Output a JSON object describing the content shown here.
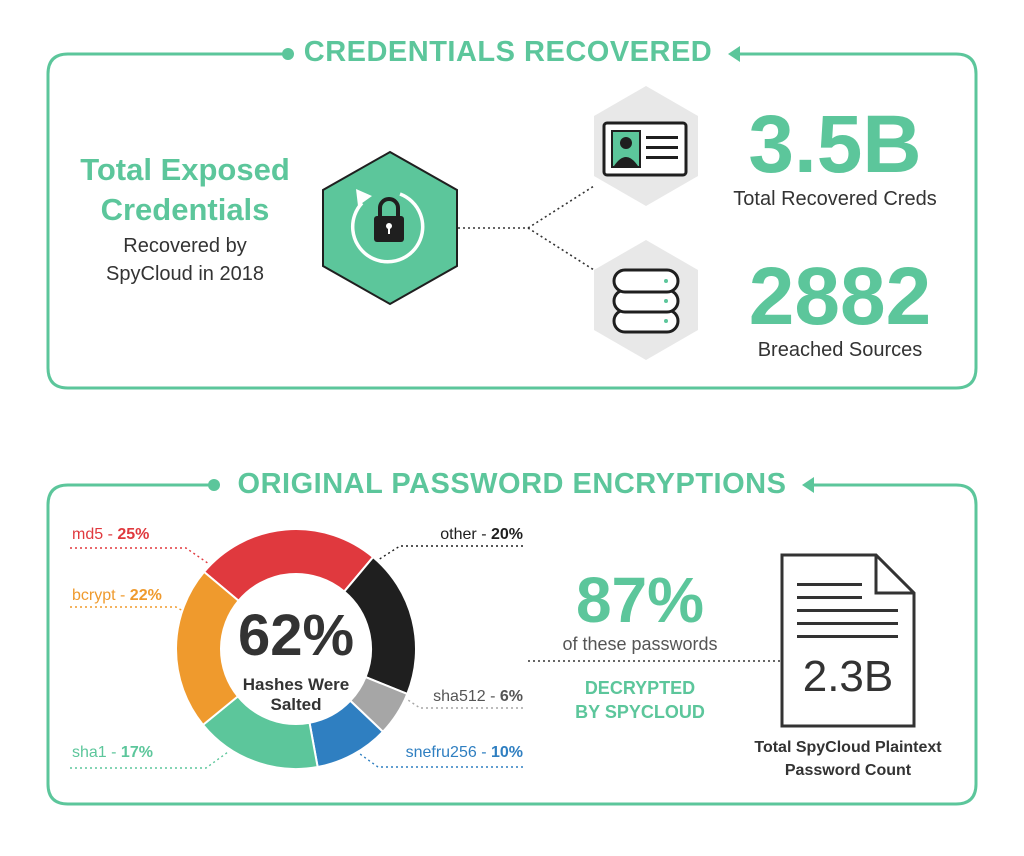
{
  "section1": {
    "title": "CREDENTIALS RECOVERED",
    "left_heading_line1": "Total Exposed",
    "left_heading_line2": "Credentials",
    "left_sub_line1": "Recovered by",
    "left_sub_line2": "SpyCloud in 2018",
    "stat1_value": "3.5B",
    "stat1_label": "Total Recovered Creds",
    "stat2_value": "2882",
    "stat2_label": "Breached Sources"
  },
  "section2": {
    "title": "ORIGINAL PASSWORD ENCRYPTIONS",
    "center_value": "62%",
    "center_label_line1": "Hashes Were",
    "center_label_line2": "Salted",
    "decrypt_value": "87%",
    "decrypt_sub": "of these passwords",
    "decrypt_line1": "DECRYPTED",
    "decrypt_line2": "BY SPYCLOUD",
    "doc_value": "2.3B",
    "doc_label_line1": "Total SpyCloud Plaintext",
    "doc_label_line2": "Password Count"
  },
  "colors": {
    "accent": "#5cc69b",
    "md5": "#e0393e",
    "other": "#1f1f1f",
    "sha512": "#a6a6a6",
    "snefru256": "#2f7fc1",
    "sha1": "#5cc69b",
    "bcrypt": "#ef9a2d",
    "hexagon_gray": "#e8e8e8"
  },
  "icons": [
    "lock-refresh-icon",
    "id-card-icon",
    "database-icon",
    "document-icon"
  ],
  "chart_data": {
    "type": "pie",
    "categories": [
      "md5",
      "other",
      "sha512",
      "snefru256",
      "sha1",
      "bcrypt"
    ],
    "values": [
      25,
      20,
      6,
      10,
      17,
      22
    ],
    "labels": [
      {
        "name": "md5",
        "pct": "25%"
      },
      {
        "name": "other",
        "pct": "20%"
      },
      {
        "name": "sha512",
        "pct": "6%"
      },
      {
        "name": "snefru256",
        "pct": "10%"
      },
      {
        "name": "sha1",
        "pct": "17%"
      },
      {
        "name": "bcrypt",
        "pct": "22%"
      }
    ]
  }
}
